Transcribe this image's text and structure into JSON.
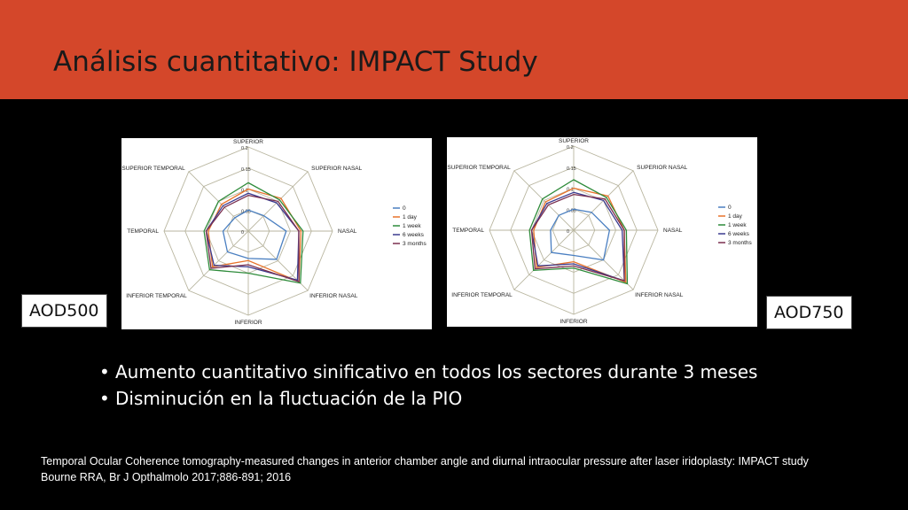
{
  "slide": {
    "title": "Análisis cuantitativo: IMPACT Study",
    "badges": {
      "left": "AOD500",
      "right": "AOD750"
    },
    "bullets": [
      "Aumento cuantitativo sinificativo en todos los sectores durante 3 meses",
      "Disminución en la fluctuación de la PIO"
    ],
    "citation": {
      "line1": "Temporal Ocular Coherence tomography-measured changes in anterior chamber angle and diurnal intraocular pressure after laser iridoplasty: IMPACT study",
      "line2": "Bourne RRA, Br J Opthalmolo 2017;886-891; 2016"
    }
  },
  "chart_data": [
    {
      "type": "radar",
      "badge": "AOD500",
      "axes": [
        "SUPERIOR",
        "SUPERIOR NASAL",
        "NASAL",
        "INFERIOR NASAL",
        "INFERIOR",
        "INFERIOR TEMPORAL",
        "TEMPORAL",
        "SUPERIOR TEMPORAL"
      ],
      "radial_ticks": [
        "0",
        "0.05",
        "0.1",
        "0.15",
        "0.2"
      ],
      "rmax": 0.2,
      "legend_position": "right",
      "series": [
        {
          "name": "0",
          "color": "#4a7fc1",
          "values": [
            0.05,
            0.052,
            0.09,
            0.095,
            0.065,
            0.07,
            0.06,
            0.045
          ]
        },
        {
          "name": "1 day",
          "color": "#e8732a",
          "values": [
            0.1,
            0.11,
            0.125,
            0.17,
            0.07,
            0.12,
            0.095,
            0.09
          ]
        },
        {
          "name": "1 week",
          "color": "#2e8b3a",
          "values": [
            0.115,
            0.105,
            0.13,
            0.175,
            0.1,
            0.13,
            0.105,
            0.1
          ]
        },
        {
          "name": "6 weeks",
          "color": "#3b3b8f",
          "values": [
            0.09,
            0.095,
            0.12,
            0.165,
            0.085,
            0.115,
            0.1,
            0.085
          ]
        },
        {
          "name": "3 months",
          "color": "#7a2f4f",
          "values": [
            0.085,
            0.1,
            0.12,
            0.17,
            0.08,
            0.125,
            0.1,
            0.08
          ]
        }
      ]
    },
    {
      "type": "radar",
      "badge": "AOD750",
      "axes": [
        "SUPERIOR",
        "SUPERIOR NASAL",
        "NASAL",
        "INFERIOR NASAL",
        "INFERIOR",
        "INFERIOR TEMPORAL",
        "TEMPORAL",
        "SUPERIOR TEMPORAL"
      ],
      "radial_ticks": [
        "0",
        "0.05",
        "0.1",
        "0.15",
        "0.2"
      ],
      "rmax": 0.2,
      "legend_position": "right",
      "series": [
        {
          "name": "0",
          "color": "#4a7fc1",
          "values": [
            0.05,
            0.06,
            0.085,
            0.1,
            0.06,
            0.075,
            0.055,
            0.05
          ]
        },
        {
          "name": "1 day",
          "color": "#e8732a",
          "values": [
            0.1,
            0.115,
            0.12,
            0.175,
            0.075,
            0.125,
            0.095,
            0.095
          ]
        },
        {
          "name": "1 week",
          "color": "#2e8b3a",
          "values": [
            0.12,
            0.11,
            0.125,
            0.18,
            0.09,
            0.135,
            0.105,
            0.105
          ]
        },
        {
          "name": "6 weeks",
          "color": "#3b3b8f",
          "values": [
            0.09,
            0.1,
            0.115,
            0.17,
            0.08,
            0.12,
            0.1,
            0.09
          ]
        },
        {
          "name": "3 months",
          "color": "#7a2f4f",
          "values": [
            0.085,
            0.105,
            0.12,
            0.17,
            0.085,
            0.13,
            0.1,
            0.085
          ]
        }
      ]
    }
  ]
}
